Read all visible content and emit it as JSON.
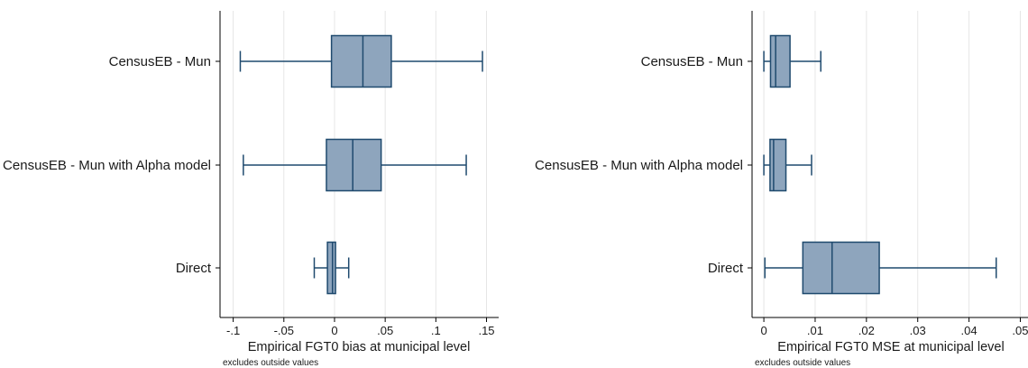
{
  "chart_data": [
    {
      "type": "boxplot",
      "orientation": "horizontal",
      "categories": [
        "CensusEB - Mun",
        "CensusEB - Mun with Alpha model",
        "Direct"
      ],
      "boxes": [
        {
          "name": "CensusEB - Mun",
          "whisker_low": -0.093,
          "q1": -0.003,
          "median": 0.028,
          "q3": 0.056,
          "whisker_high": 0.146
        },
        {
          "name": "CensusEB - Mun with Alpha model",
          "whisker_low": -0.09,
          "q1": -0.008,
          "median": 0.018,
          "q3": 0.046,
          "whisker_high": 0.13
        },
        {
          "name": "Direct",
          "whisker_low": -0.02,
          "q1": -0.007,
          "median": -0.002,
          "q3": 0.001,
          "whisker_high": 0.014
        }
      ],
      "xticks": [
        -0.1,
        -0.05,
        0,
        0.05,
        0.1,
        0.15
      ],
      "xtick_labels": [
        "-.1",
        "-.05",
        "0",
        ".05",
        ".1",
        ".15"
      ],
      "xlim": [
        -0.113,
        0.162
      ],
      "xlabel": "Empirical FGT0 bias at municipal level",
      "note": "excludes outside values",
      "grid": true,
      "box_color": "#8ea5bd",
      "line_color": "#1f4a6e"
    },
    {
      "type": "boxplot",
      "orientation": "horizontal",
      "categories": [
        "CensusEB - Mun",
        "CensusEB - Mun with Alpha model",
        "Direct"
      ],
      "boxes": [
        {
          "name": "CensusEB - Mun",
          "whisker_low": 0.0,
          "q1": 0.0013,
          "median": 0.0023,
          "q3": 0.0051,
          "whisker_high": 0.0111
        },
        {
          "name": "CensusEB - Mun with Alpha model",
          "whisker_low": 0.0,
          "q1": 0.0012,
          "median": 0.0019,
          "q3": 0.0043,
          "whisker_high": 0.0093
        },
        {
          "name": "Direct",
          "whisker_low": 0.0002,
          "q1": 0.0076,
          "median": 0.0133,
          "q3": 0.0225,
          "whisker_high": 0.0453
        }
      ],
      "xticks": [
        0,
        0.01,
        0.02,
        0.03,
        0.04,
        0.05
      ],
      "xtick_labels": [
        "0",
        ".01",
        ".02",
        ".03",
        ".04",
        ".05"
      ],
      "xlim": [
        -0.0023,
        0.0515
      ],
      "xlabel": "Empirical FGT0 MSE at municipal level",
      "note": "excludes outside values",
      "grid": true,
      "box_color": "#8ea5bd",
      "line_color": "#1f4a6e"
    }
  ]
}
